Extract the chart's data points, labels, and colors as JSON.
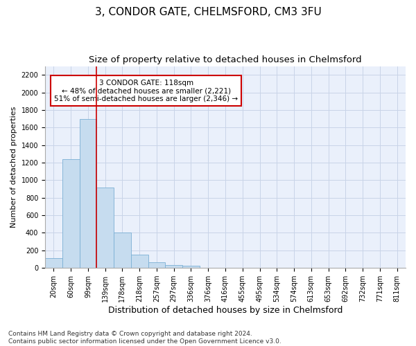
{
  "title": "3, CONDOR GATE, CHELMSFORD, CM3 3FU",
  "subtitle": "Size of property relative to detached houses in Chelmsford",
  "xlabel": "Distribution of detached houses by size in Chelmsford",
  "ylabel": "Number of detached properties",
  "bar_labels": [
    "20sqm",
    "60sqm",
    "99sqm",
    "139sqm",
    "178sqm",
    "218sqm",
    "257sqm",
    "297sqm",
    "336sqm",
    "376sqm",
    "416sqm",
    "455sqm",
    "495sqm",
    "534sqm",
    "574sqm",
    "613sqm",
    "653sqm",
    "692sqm",
    "732sqm",
    "771sqm",
    "811sqm"
  ],
  "bar_values": [
    115,
    1240,
    1700,
    920,
    400,
    150,
    65,
    35,
    25,
    0,
    0,
    0,
    0,
    0,
    0,
    0,
    0,
    0,
    0,
    0,
    0
  ],
  "bar_color": "#c6dcef",
  "bar_edge_color": "#7aafd4",
  "bar_width": 1.0,
  "property_line_x": 2.5,
  "annotation_text": "3 CONDOR GATE: 118sqm\n← 48% of detached houses are smaller (2,221)\n51% of semi-detached houses are larger (2,346) →",
  "annotation_box_color": "#ffffff",
  "annotation_box_edge_color": "#cc0000",
  "vline_color": "#cc0000",
  "grid_color": "#c8d4e8",
  "background_color": "#eaf0fb",
  "ylim": [
    0,
    2300
  ],
  "yticks": [
    0,
    200,
    400,
    600,
    800,
    1000,
    1200,
    1400,
    1600,
    1800,
    2000,
    2200
  ],
  "footnote1": "Contains HM Land Registry data © Crown copyright and database right 2024.",
  "footnote2": "Contains public sector information licensed under the Open Government Licence v3.0.",
  "title_fontsize": 11,
  "subtitle_fontsize": 9.5,
  "xlabel_fontsize": 9,
  "ylabel_fontsize": 8,
  "tick_fontsize": 7,
  "annotation_fontsize": 7.5,
  "footnote_fontsize": 6.5
}
